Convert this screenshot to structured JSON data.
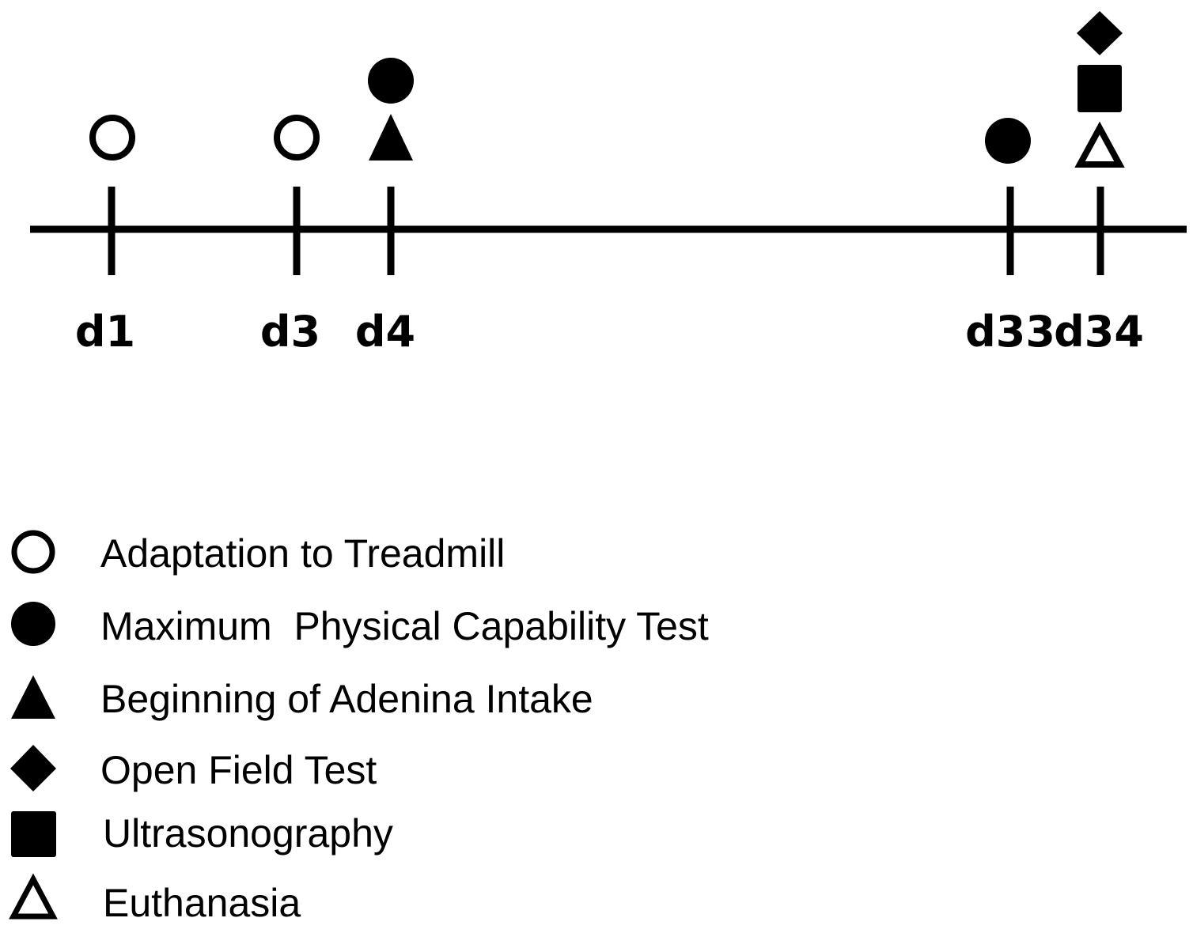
{
  "timeline": {
    "days": [
      {
        "label": "d1",
        "day": 1,
        "events": [
          "adaptation"
        ]
      },
      {
        "label": "d3",
        "day": 3,
        "events": [
          "adaptation"
        ]
      },
      {
        "label": "d4",
        "day": 4,
        "events": [
          "adenina",
          "capability"
        ]
      },
      {
        "label": "d33",
        "day": 33,
        "events": [
          "capability"
        ]
      },
      {
        "label": "d34",
        "day": 34,
        "events": [
          "euthanasia",
          "ultrasonography",
          "open_field"
        ]
      }
    ]
  },
  "legend": {
    "items": [
      {
        "key": "adaptation",
        "symbol": "circle-open",
        "label": "Adaptation to Treadmill"
      },
      {
        "key": "capability",
        "symbol": "circle-filled",
        "label": "Maximum  Physical Capability Test"
      },
      {
        "key": "adenina",
        "symbol": "triangle-filled",
        "label": "Beginning of Adenina Intake"
      },
      {
        "key": "open_field",
        "symbol": "diamond-filled",
        "label": "Open Field Test"
      },
      {
        "key": "ultrasonography",
        "symbol": "square-filled",
        "label": "Ultrasonography"
      },
      {
        "key": "euthanasia",
        "symbol": "triangle-open",
        "label": "Euthanasia"
      }
    ]
  },
  "colors": {
    "ink": "#000000",
    "background": "#ffffff"
  }
}
